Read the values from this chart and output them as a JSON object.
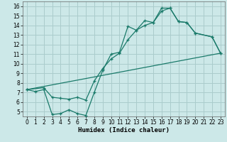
{
  "background_color": "#cce8e8",
  "grid_color": "#aacccc",
  "line_color": "#1a7a6a",
  "xlabel": "Humidex (Indice chaleur)",
  "xlim": [
    -0.5,
    23.5
  ],
  "ylim": [
    4.5,
    16.5
  ],
  "xticks": [
    0,
    1,
    2,
    3,
    4,
    5,
    6,
    7,
    8,
    9,
    10,
    11,
    12,
    13,
    14,
    15,
    16,
    17,
    18,
    19,
    20,
    21,
    22,
    23
  ],
  "yticks": [
    5,
    6,
    7,
    8,
    9,
    10,
    11,
    12,
    13,
    14,
    15,
    16
  ],
  "line1_x": [
    0,
    23
  ],
  "line1_y": [
    7.3,
    11.1
  ],
  "line2_x": [
    0,
    1,
    2,
    3,
    4,
    5,
    6,
    7,
    8,
    9,
    10,
    11,
    12,
    13,
    14,
    15,
    16,
    17,
    18,
    19,
    20,
    22,
    23
  ],
  "line2_y": [
    7.3,
    7.1,
    7.3,
    4.7,
    4.8,
    5.2,
    4.8,
    4.6,
    7.0,
    9.3,
    11.0,
    11.2,
    13.9,
    13.5,
    14.5,
    14.3,
    15.8,
    15.8,
    14.4,
    14.3,
    13.2,
    12.8,
    11.1
  ],
  "line3_x": [
    0,
    2,
    3,
    4,
    5,
    6,
    7,
    8,
    9,
    10,
    11,
    12,
    13,
    14,
    15,
    16,
    17,
    18,
    19,
    20,
    22,
    23
  ],
  "line3_y": [
    7.3,
    7.5,
    6.5,
    6.4,
    6.3,
    6.5,
    6.2,
    8.2,
    9.5,
    10.5,
    11.1,
    12.5,
    13.5,
    14.0,
    14.3,
    15.5,
    15.8,
    14.4,
    14.3,
    13.2,
    12.8,
    11.1
  ]
}
